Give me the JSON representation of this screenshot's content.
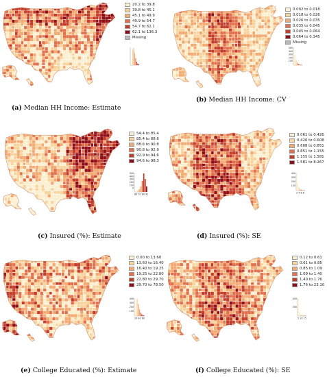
{
  "panels": [
    {
      "id": "a",
      "letter": "(a)",
      "caption": " Median HH Income: Estimate",
      "palette": [
        "#fcefcf",
        "#f8d39c",
        "#f2aa72",
        "#e2704c",
        "#c43d2b",
        "#8e0d17"
      ],
      "missing_color": "#b8b8b8",
      "bins": [
        "20.2 to 39.8",
        "39.8 to 45.1",
        "45.1 to 49.9",
        "49.9 to 54.7",
        "54.7 to 62.1",
        "62.1 to 136.3",
        "Missing"
      ],
      "hist_ticks": [
        "",
        ""
      ]
    },
    {
      "id": "b",
      "letter": "(b)",
      "caption": " Median HH Income: CV",
      "palette": [
        "#fcefcf",
        "#f8d39c",
        "#f2aa72",
        "#e2704c",
        "#c43d2b",
        "#8e0d17"
      ],
      "missing_color": "#b8b8b8",
      "bins": [
        "0.002 to 0.018",
        "0.018 to 0.026",
        "0.026 to 0.035",
        "0.035 to 0.045",
        "0.045 to 0.064",
        "0.064 to 0.345",
        "Missing"
      ],
      "hist_ticks": [
        "500",
        "400",
        "300",
        "200",
        "100"
      ]
    },
    {
      "id": "c",
      "letter": "(c)",
      "caption": " Insured (%): Estimate",
      "palette": [
        "#fcefcf",
        "#f8d39c",
        "#f2aa72",
        "#e2704c",
        "#c43d2b",
        "#8e0d17"
      ],
      "missing_color": "#b8b8b8",
      "bins": [
        "54.4 to 85.4",
        "85.4 to 88.6",
        "88.6 to 90.8",
        "90.8 to 92.9",
        "92.9 to 94.6",
        "94.6 to 98.3"
      ],
      "hist_ticks": [
        "500",
        "400",
        "300",
        "200",
        "100",
        "0"
      ],
      "hist_x": "60 70 80 90"
    },
    {
      "id": "d",
      "letter": "(d)",
      "caption": " Insured (%): SE",
      "palette": [
        "#fcefcf",
        "#f8d39c",
        "#f2aa72",
        "#e2704c",
        "#c43d2b",
        "#8e0d17"
      ],
      "missing_color": "#b8b8b8",
      "bins": [
        "0.061 to 0.426",
        "0.426 to 0.608",
        "0.608 to 0.851",
        "0.851 to 1.155",
        "1.155 to 1.581",
        "1.581 to 8.267"
      ],
      "hist_ticks": [
        "400",
        "300",
        "200",
        "100"
      ],
      "hist_x": "2  4  6  8"
    },
    {
      "id": "e",
      "letter": "(e)",
      "caption": " College Educated (%): Estimate",
      "palette": [
        "#fcefcf",
        "#f8d39c",
        "#f2aa72",
        "#e2704c",
        "#c43d2b",
        "#8e0d17"
      ],
      "missing_color": "#b8b8b8",
      "bins": [
        "0.00 to 13.60",
        "13.60 to 16.40",
        "16.40 to 19.25",
        "19.25 to 22.80",
        "22.80 to 29.70",
        "29.70 to 78.50"
      ],
      "hist_ticks": [
        "400",
        "300",
        "200",
        "100"
      ],
      "hist_x": "20 40 60"
    },
    {
      "id": "f",
      "letter": "(f)",
      "caption": " College Educated (%): SE",
      "palette": [
        "#fcefcf",
        "#f8d39c",
        "#f2aa72",
        "#e2704c",
        "#c43d2b",
        "#8e0d17"
      ],
      "missing_color": "#b8b8b8",
      "bins": [
        "0.12 to 0.61",
        "0.61 to 0.85",
        "0.85 to 1.09",
        "1.09 to 1.40",
        "1.40 to 1.76",
        "1.76 to 23.10"
      ],
      "hist_ticks": [
        "1000",
        "500"
      ],
      "hist_x": "5 10 15 20"
    }
  ]
}
